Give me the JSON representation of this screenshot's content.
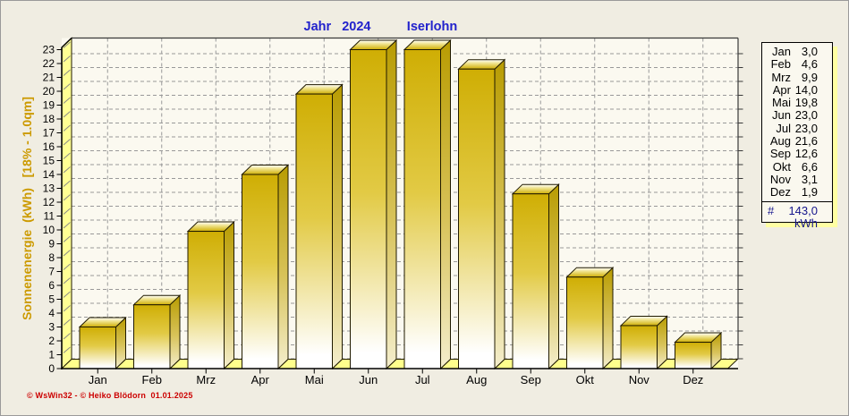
{
  "window": {
    "background": "#f0ede2",
    "plot_background": "#fbf9f0",
    "border_color": "#9a9a9a"
  },
  "title": {
    "year_label": "Jahr   2024",
    "location": "Iserlohn",
    "color": "#2222cc"
  },
  "y_axis": {
    "label": "Sonnenenergie  (kWh)   [18% - 1.0qm]",
    "label_color": "#cc9a00",
    "min": 0,
    "max": 23,
    "tick_step": 1
  },
  "chart_data": {
    "type": "bar",
    "title": "Jahr 2024 - Iserlohn",
    "categories": [
      "Jan",
      "Feb",
      "Mrz",
      "Apr",
      "Mai",
      "Jun",
      "Jul",
      "Aug",
      "Sep",
      "Okt",
      "Nov",
      "Dez"
    ],
    "values": [
      3.0,
      4.6,
      9.9,
      14.0,
      19.8,
      23.0,
      23.0,
      21.6,
      12.6,
      6.6,
      3.1,
      1.9
    ],
    "ylabel": "Sonnenenergie (kWh) [18% - 1.0qm]",
    "ylim": [
      0,
      23
    ],
    "unit": "kWh",
    "total": 143.0,
    "grid": true,
    "legend": "none",
    "style": "3d-gold-bars"
  },
  "summary_table": {
    "rows": [
      {
        "month": "Jan",
        "value": "3,0"
      },
      {
        "month": "Feb",
        "value": "4,6"
      },
      {
        "month": "Mrz",
        "value": "9,9"
      },
      {
        "month": "Apr",
        "value": "14,0"
      },
      {
        "month": "Mai",
        "value": "19,8"
      },
      {
        "month": "Jun",
        "value": "23,0"
      },
      {
        "month": "Jul",
        "value": "23,0"
      },
      {
        "month": "Aug",
        "value": "21,6"
      },
      {
        "month": "Sep",
        "value": "12,6"
      },
      {
        "month": "Okt",
        "value": "6,6"
      },
      {
        "month": "Nov",
        "value": "3,1"
      },
      {
        "month": "Dez",
        "value": "1,9"
      }
    ],
    "total_symbol": "#",
    "total_value": "143,0",
    "unit": "kWh",
    "total_color": "#14148c"
  },
  "footer": {
    "copyright": "© WsWin32 - © Heiko Blödorn  01.01.2025",
    "color": "#cc0000"
  },
  "colors": {
    "bar_gold": "#cfae04",
    "bar_gold_mid": "#e2ca45",
    "bar_white": "#ffffff",
    "bar_side_dark": "#b89c02",
    "bar_side_light": "#f4eecd",
    "top_face_mid": "#efe28a",
    "outline": "#201a00",
    "wall_yellow": "#ffff94",
    "floor_yellow": "#ffff8c",
    "grid": "#999999",
    "frame": "#3a3a3a",
    "axis": "#000000",
    "hatch": "#888888"
  }
}
